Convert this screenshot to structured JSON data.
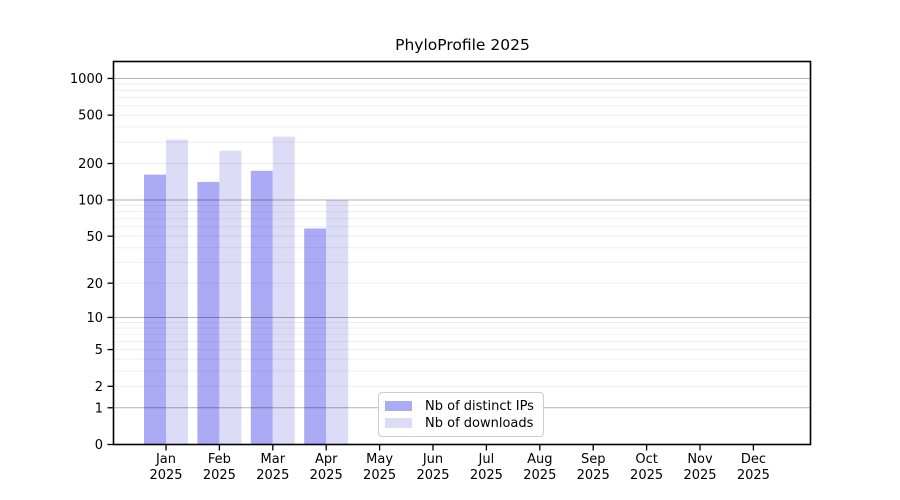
{
  "chart_data": {
    "type": "bar",
    "title": "PhyloProfile 2025",
    "categories": [
      "Jan",
      "Feb",
      "Mar",
      "Apr",
      "May",
      "Jun",
      "Jul",
      "Aug",
      "Sep",
      "Oct",
      "Nov",
      "Dec"
    ],
    "year": "2025",
    "series": [
      {
        "name": "Nb of distinct IPs",
        "color": "#aaaaf5",
        "values": [
          162,
          141,
          174,
          58,
          null,
          null,
          null,
          null,
          null,
          null,
          null,
          null
        ]
      },
      {
        "name": "Nb of downloads",
        "color": "#dcdcf7",
        "values": [
          314,
          255,
          333,
          100,
          null,
          null,
          null,
          null,
          null,
          null,
          null,
          null
        ]
      }
    ],
    "yscale": "symlog",
    "y_ticks": [
      0,
      1,
      2,
      5,
      10,
      20,
      50,
      100,
      200,
      500,
      1000
    ],
    "ylim": [
      0,
      1390
    ],
    "grid": true,
    "legend_position": "bottom-center",
    "colors": {
      "frame": "#000000",
      "major_grid": "#b0b0b0",
      "minor_grid": "#ebebeb",
      "background": "#ffffff"
    }
  }
}
